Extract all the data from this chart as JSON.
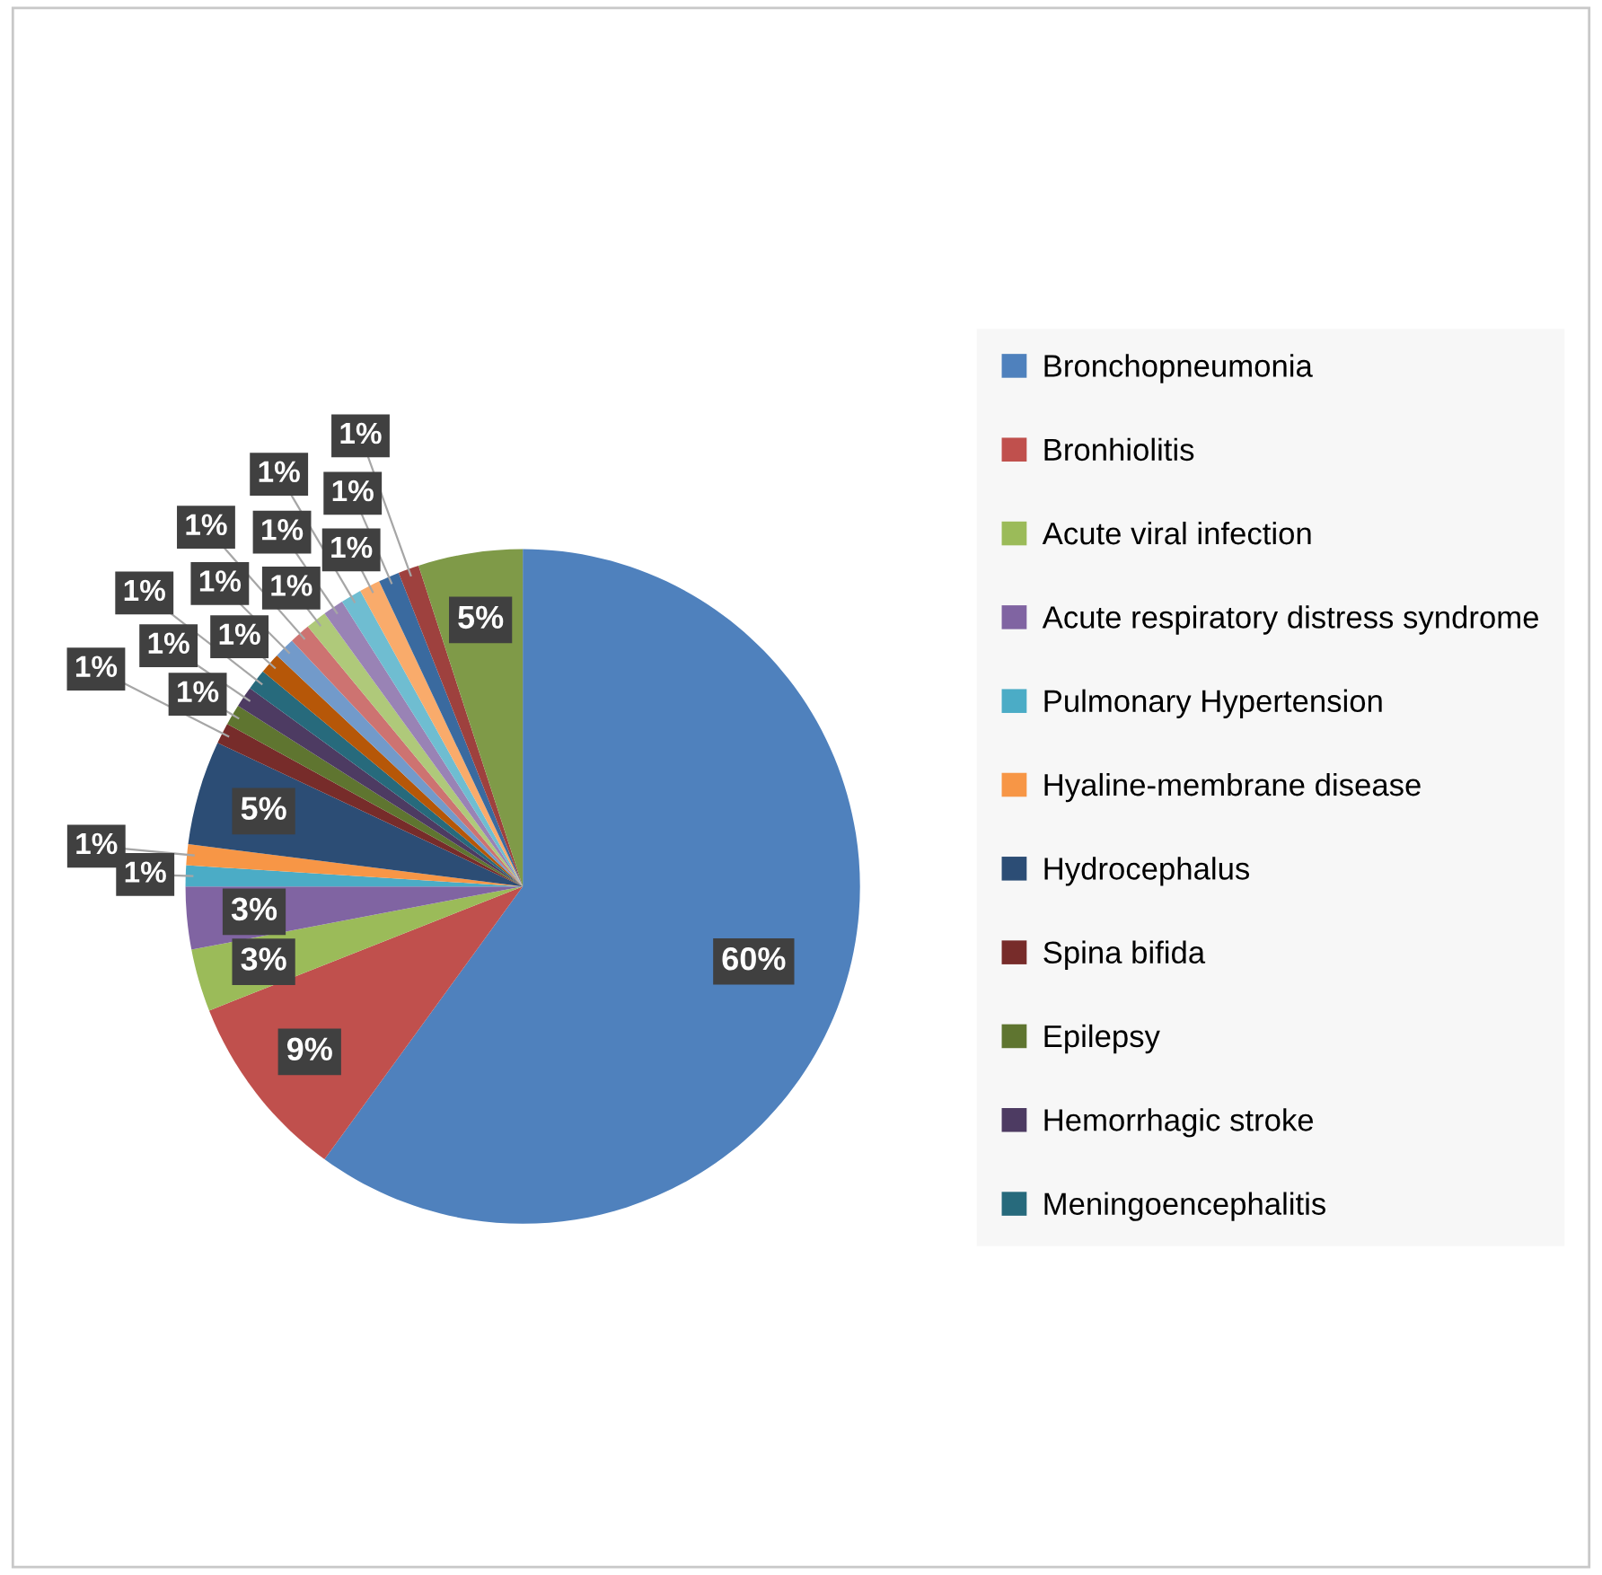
{
  "chart_data": {
    "type": "pie",
    "categories": [
      "Bronchopneumonia",
      "Bronhiolitis",
      "Acute viral infection",
      "Acute respiratory distress syndrome",
      "Pulmonary Hypertension",
      "Hyaline-membrane disease",
      "Hydrocephalus",
      "Spina bifida",
      "Epilepsy",
      "Hemorrhagic stroke",
      "Meningoencephalitis",
      null,
      null,
      null,
      null,
      null,
      null,
      null,
      null,
      null,
      null
    ],
    "values": [
      60,
      9,
      3,
      3,
      1,
      1,
      5,
      1,
      1,
      1,
      1,
      1,
      1,
      1,
      1,
      1,
      1,
      1,
      1,
      1,
      5
    ],
    "value_labels": [
      "60%",
      "9%",
      "3%",
      "3%",
      "1%",
      "1%",
      "5%",
      "1%",
      "1%",
      "1%",
      "1%",
      "1%",
      "1%",
      "1%",
      "1%",
      "1%",
      "1%",
      "1%",
      "1%",
      "1%",
      "5%"
    ],
    "colors": [
      "#4f81bd",
      "#c0504d",
      "#9bbb59",
      "#8064a2",
      "#4bacc6",
      "#f79646",
      "#2c4d75",
      "#772c2a",
      "#5f7530",
      "#4d3b62",
      "#276a7c",
      "#b65708",
      "#729aca",
      "#cd7371",
      "#afc97a",
      "#9983b5",
      "#6fbdd1",
      "#f9ab6b",
      "#3a6a9f",
      "#9e413e",
      "#7f9a48"
    ],
    "legend": "right"
  }
}
